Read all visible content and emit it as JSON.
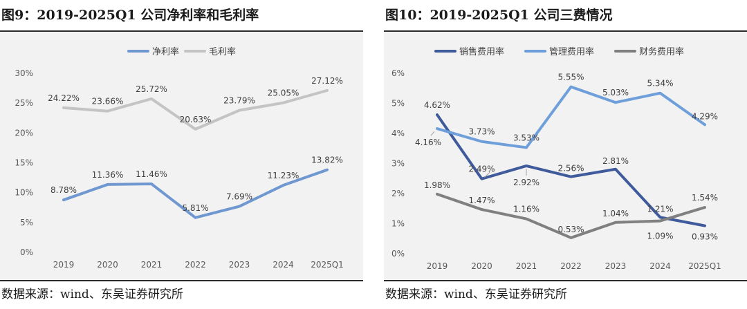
{
  "charts": [
    {
      "title": "图9：2019-2025Q1 公司净利率和毛利率",
      "source": "数据来源：wind、东吴证券研究所"
    },
    {
      "title": "图10：2019-2025Q1 公司三费情况",
      "source": "数据来源：wind、东吴证券研究所"
    }
  ],
  "chart_data": [
    {
      "type": "line",
      "title": "图9：2019-2025Q1 公司净利率和毛利率",
      "categories": [
        "2019",
        "2020",
        "2021",
        "2022",
        "2023",
        "2024",
        "2025Q1"
      ],
      "y_ticks": [
        "0%",
        "5%",
        "10%",
        "15%",
        "20%",
        "25%",
        "30%"
      ],
      "ylim": [
        0,
        30
      ],
      "legend_position": "top",
      "grid": false,
      "series": [
        {
          "name": "净利率",
          "color": "#6f97d0",
          "values": [
            8.78,
            11.36,
            11.46,
            5.81,
            7.69,
            11.23,
            13.82
          ],
          "labels": [
            "8.78%",
            "11.36%",
            "11.46%",
            "5.81%",
            "7.69%",
            "11.23%",
            "13.82%"
          ]
        },
        {
          "name": "毛利率",
          "color": "#c4c4c4",
          "values": [
            24.22,
            23.66,
            25.72,
            20.63,
            23.79,
            25.05,
            27.12
          ],
          "labels": [
            "24.22%",
            "23.66%",
            "25.72%",
            "20.63%",
            "23.79%",
            "25.05%",
            "27.12%"
          ]
        }
      ]
    },
    {
      "type": "line",
      "title": "图10：2019-2025Q1 公司三费情况",
      "categories": [
        "2019",
        "2020",
        "2021",
        "2022",
        "2023",
        "2024",
        "2025Q1"
      ],
      "y_ticks": [
        "0%",
        "1%",
        "2%",
        "3%",
        "4%",
        "5%",
        "6%"
      ],
      "ylim": [
        0,
        6
      ],
      "legend_position": "top",
      "grid": false,
      "series": [
        {
          "name": "销售费用率",
          "color": "#3f5b9c",
          "values": [
            4.62,
            2.49,
            2.92,
            2.56,
            2.81,
            1.21,
            0.93
          ],
          "labels": [
            "4.62%",
            "2.49%",
            "2.92%",
            "2.56%",
            "2.81%",
            "1.21%",
            "0.93%"
          ]
        },
        {
          "name": "管理费用率",
          "color": "#6f9fdb",
          "values": [
            4.16,
            3.73,
            3.53,
            5.55,
            5.03,
            5.34,
            4.29
          ],
          "labels": [
            "4.16%",
            "3.73%",
            "3.53%",
            "5.55%",
            "5.03%",
            "5.34%",
            "4.29%"
          ]
        },
        {
          "name": "财务费用率",
          "color": "#808080",
          "values": [
            1.98,
            1.47,
            1.16,
            0.53,
            1.04,
            1.09,
            1.54
          ],
          "labels": [
            "1.98%",
            "1.47%",
            "1.16%",
            "0.53%",
            "1.04%",
            "1.09%",
            "1.54%"
          ]
        }
      ]
    }
  ]
}
